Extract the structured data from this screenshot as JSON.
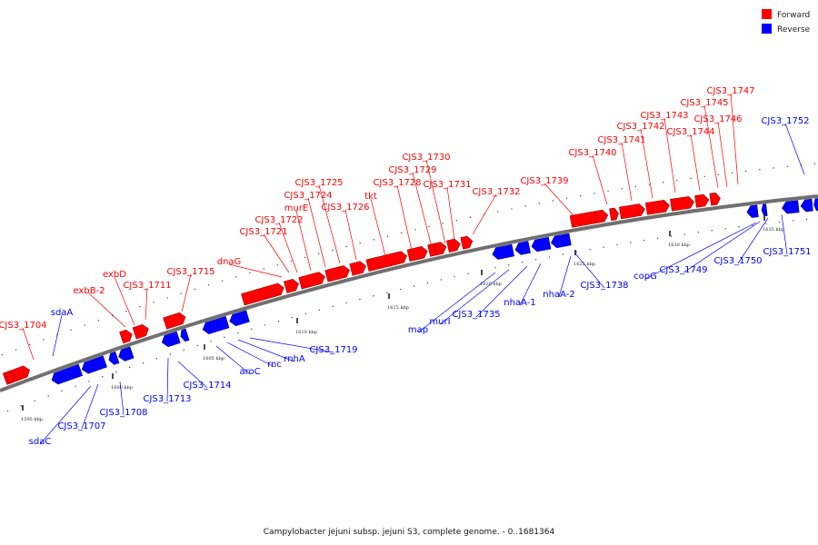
{
  "caption": "Campylobacter jejuni subsp. jejuni S3, complete genome. - 0..1681364",
  "legend": [
    {
      "label": "Forward",
      "color": "#ff0000"
    },
    {
      "label": "Reverse",
      "color": "#0000ff"
    }
  ],
  "colors": {
    "forward": "#ff0000",
    "reverse": "#0000ff",
    "backbone": "#707070"
  },
  "ticks": [
    "1595 kbp",
    "1600 kbp",
    "1605 kbp",
    "1610 kbp",
    "1615 kbp",
    "1620 kbp",
    "1625 kbp",
    "1630 kbp",
    "1635 kbp"
  ],
  "forward_labels": [
    "CJS3_1704",
    "exbB-2",
    "exbD",
    "CJS3_1711",
    "CJS3_1715",
    "dnaG",
    "CJS3_1721",
    "CJS3_1722",
    "murE",
    "CJS3_1724",
    "CJS3_1725",
    "CJS3_1726",
    "tkt",
    "CJS3_1728",
    "CJS3_1729",
    "CJS3_1730",
    "CJS3_1731",
    "CJS3_1732",
    "CJS3_1739",
    "CJS3_1740",
    "CJS3_1741",
    "CJS3_1742",
    "CJS3_1743",
    "CJS3_1744",
    "CJS3_1745",
    "CJS3_1746",
    "CJS3_1747"
  ],
  "reverse_labels": [
    "sdaA",
    "sdaC",
    "CJS3_1707",
    "CJS3_1708",
    "CJS3_1713",
    "CJS3_1714",
    "aroC",
    "rnc",
    "rnhA",
    "CJS3_1719",
    "map",
    "murI",
    "CJS3_1735",
    "nhaA-1",
    "nhaA-2",
    "CJS3_1738",
    "copG",
    "CJS3_1749",
    "CJS3_1750",
    "CJS3_1751",
    "CJS3_1752"
  ]
}
